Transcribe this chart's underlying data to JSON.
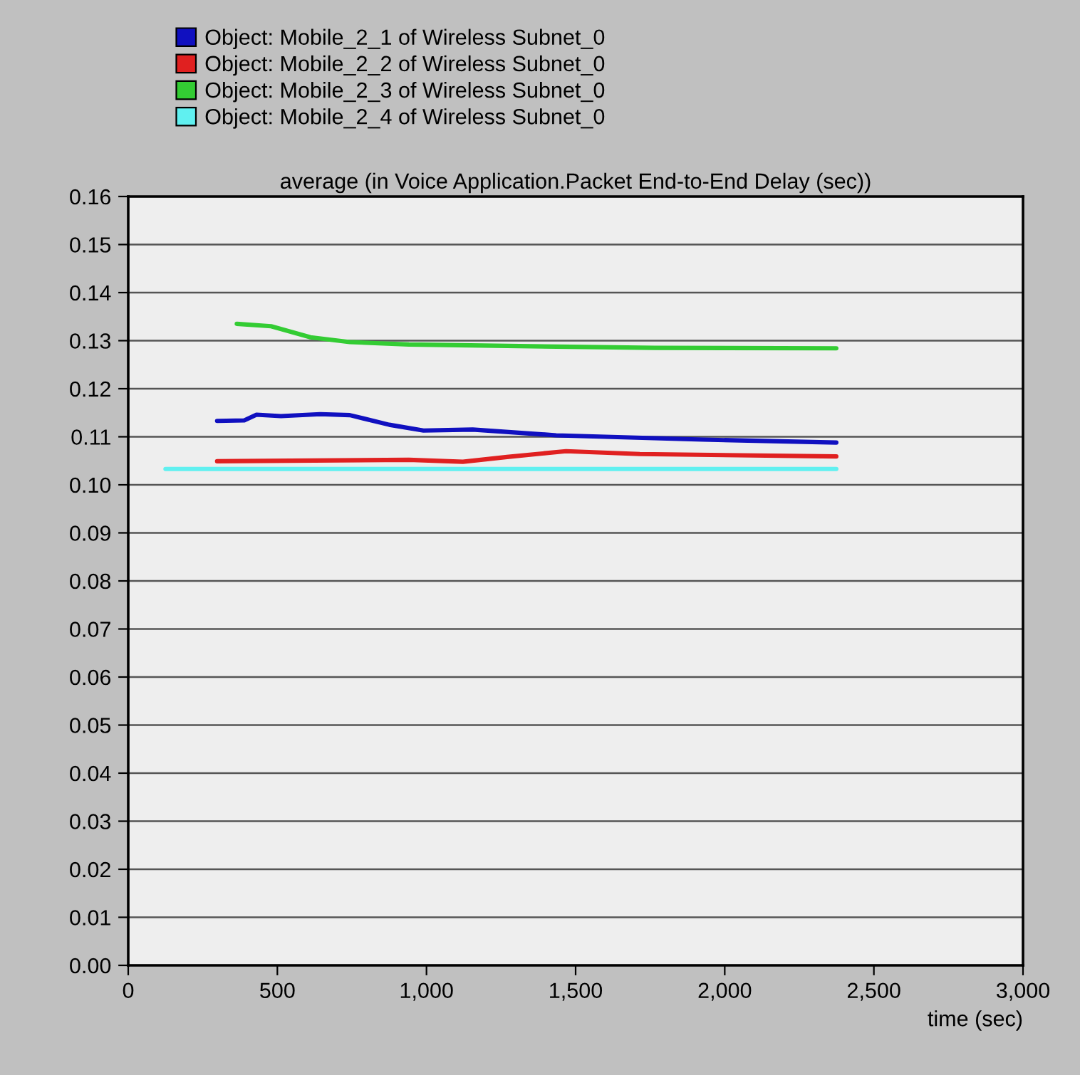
{
  "chart_data": {
    "type": "line",
    "title": "average (in Voice Application.Packet End-to-End Delay (sec))",
    "xlabel": "time (sec)",
    "xlim": [
      0,
      3000
    ],
    "xticks": [
      0,
      500,
      {
        "value": 1000,
        "label": "1,000"
      },
      {
        "value": 1500,
        "label": "1,500"
      },
      {
        "value": 2000,
        "label": "2,000"
      },
      {
        "value": 2500,
        "label": "2,500"
      },
      {
        "value": 3000,
        "label": "3,000"
      }
    ],
    "ylim": [
      0,
      0.16
    ],
    "yticks": [
      {
        "value": 0,
        "label": "0.00"
      },
      {
        "value": 0.01,
        "label": "0.01"
      },
      {
        "value": 0.02,
        "label": "0.02"
      },
      {
        "value": 0.03,
        "label": "0.03"
      },
      {
        "value": 0.04,
        "label": "0.04"
      },
      {
        "value": 0.05,
        "label": "0.05"
      },
      {
        "value": 0.06,
        "label": "0.06"
      },
      {
        "value": 0.07,
        "label": "0.07"
      },
      {
        "value": 0.08,
        "label": "0.08"
      },
      {
        "value": 0.09,
        "label": "0.09"
      },
      {
        "value": 0.1,
        "label": "0.10"
      },
      {
        "value": 0.11,
        "label": "0.11"
      },
      {
        "value": 0.12,
        "label": "0.12"
      },
      {
        "value": 0.13,
        "label": "0.13"
      },
      {
        "value": 0.14,
        "label": "0.14"
      },
      {
        "value": 0.15,
        "label": "0.15"
      },
      {
        "value": 0.16,
        "label": "0.16"
      }
    ],
    "grid": "y",
    "legend": "top",
    "line_style": "solid",
    "series": [
      {
        "name": "Object: Mobile_2_1 of Wireless Subnet_0",
        "color": "#1010c0",
        "x": [
          298,
          389,
          430,
          512,
          644,
          743,
          875,
          990,
          1155,
          1435,
          1929,
          2374
        ],
        "values": [
          0.1133,
          0.1134,
          0.1146,
          0.1143,
          0.1147,
          0.1145,
          0.1125,
          0.1113,
          0.1115,
          0.1103,
          0.1094,
          0.1088
        ]
      },
      {
        "name": "Object: Mobile_2_2 of Wireless Subnet_0",
        "color": "#e02020",
        "x": [
          298,
          941,
          1122,
          1270,
          1468,
          1715,
          2374
        ],
        "values": [
          0.1049,
          0.1052,
          0.1048,
          0.1058,
          0.107,
          0.1064,
          0.1059
        ]
      },
      {
        "name": "Object: Mobile_2_3 of Wireless Subnet_0",
        "color": "#33cc33",
        "x": [
          364,
          479,
          611,
          743,
          941,
          1270,
          1765,
          2374
        ],
        "values": [
          0.1335,
          0.133,
          0.1307,
          0.1297,
          0.1292,
          0.1289,
          0.1285,
          0.1284
        ]
      },
      {
        "name": "Object: Mobile_2_4 of Wireless Subnet_0",
        "color": "#60f0f0",
        "x": [
          125,
          2374
        ],
        "values": [
          0.1033,
          0.1033
        ]
      }
    ]
  }
}
